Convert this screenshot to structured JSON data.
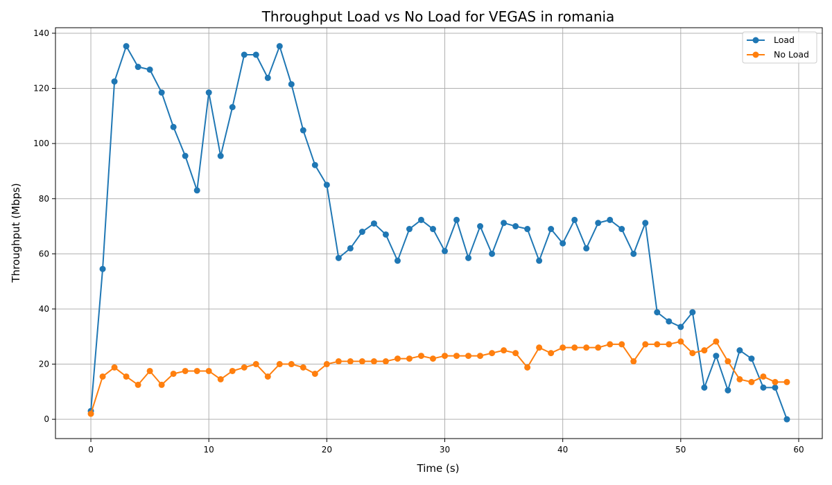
{
  "chart_data": {
    "type": "line",
    "title": "Throughput Load vs No Load for VEGAS in romania",
    "xlabel": "Time (s)",
    "ylabel": "Throughput (Mbps)",
    "xlim": [
      -3,
      62
    ],
    "ylim": [
      -7,
      142
    ],
    "xticks": [
      0,
      10,
      20,
      30,
      40,
      50,
      60
    ],
    "yticks": [
      0,
      20,
      40,
      60,
      80,
      100,
      120,
      140
    ],
    "grid": true,
    "legend_position": "top-right",
    "x": [
      0,
      1,
      2,
      3,
      4,
      5,
      6,
      7,
      8,
      9,
      10,
      11,
      12,
      13,
      14,
      15,
      16,
      17,
      18,
      19,
      20,
      21,
      22,
      23,
      24,
      25,
      26,
      27,
      28,
      29,
      30,
      31,
      32,
      33,
      34,
      35,
      36,
      37,
      38,
      39,
      40,
      41,
      42,
      43,
      44,
      45,
      46,
      47,
      48,
      49,
      50,
      51,
      52,
      53,
      54,
      55,
      56,
      57,
      58,
      59
    ],
    "series": [
      {
        "name": "Load",
        "color": "#1f77b4",
        "values": [
          3,
          54.5,
          122.5,
          135.3,
          127.8,
          126.8,
          118.5,
          106,
          95.5,
          83,
          118.5,
          95.5,
          113.2,
          132.2,
          132.2,
          123.8,
          135.3,
          121.5,
          104.8,
          92.2,
          85,
          58.5,
          62,
          68,
          71,
          67,
          57.5,
          69,
          72.3,
          69,
          61,
          72.3,
          58.5,
          70,
          60,
          71.2,
          70,
          69,
          57.5,
          69,
          63.8,
          72.3,
          62,
          71.2,
          72.3,
          69,
          60,
          71.2,
          38.8,
          35.5,
          33.5,
          38.8,
          11.5,
          23,
          10.5,
          25,
          22,
          11.5,
          11.5,
          0
        ]
      },
      {
        "name": "No Load",
        "color": "#ff7f0e",
        "values": [
          2,
          15.5,
          18.8,
          15.5,
          12.5,
          17.5,
          12.5,
          16.5,
          17.5,
          17.5,
          17.5,
          14.5,
          17.5,
          18.8,
          20,
          15.5,
          20,
          20,
          18.8,
          16.5,
          20,
          21,
          21,
          21,
          21,
          21,
          22,
          22,
          23,
          22,
          23,
          23,
          23,
          23,
          24,
          25,
          24,
          18.8,
          26,
          24,
          26,
          26,
          26,
          26,
          27.2,
          27.2,
          21,
          27.2,
          27.2,
          27.2,
          28.2,
          24,
          25,
          28.2,
          21,
          14.5,
          13.5,
          15.5,
          13.5,
          13.5
        ]
      }
    ]
  }
}
